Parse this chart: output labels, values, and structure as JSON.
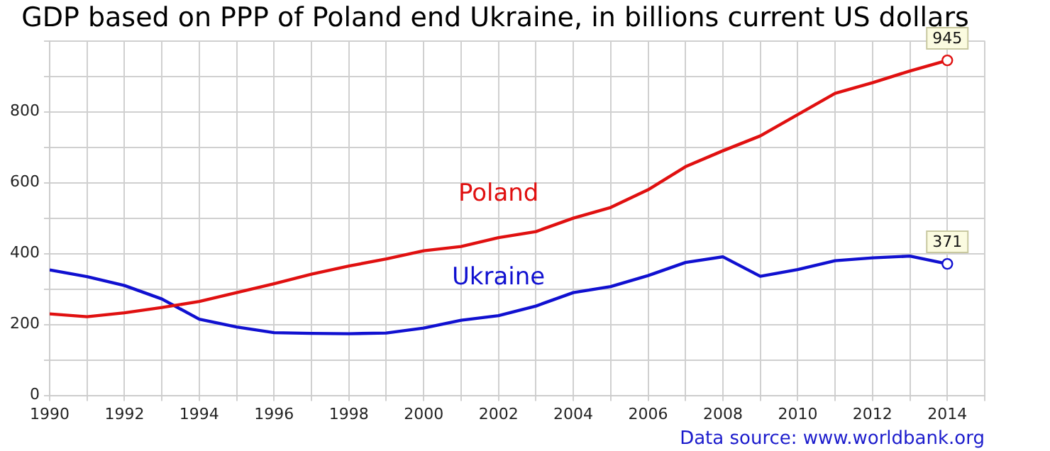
{
  "chart_data": {
    "type": "line",
    "title": "GDP based on PPP of Poland end Ukraine, in billions current US dollars",
    "x": [
      1990,
      1991,
      1992,
      1993,
      1994,
      1995,
      1996,
      1997,
      1998,
      1999,
      2000,
      2001,
      2002,
      2003,
      2004,
      2005,
      2006,
      2007,
      2008,
      2009,
      2010,
      2011,
      2012,
      2013,
      2014
    ],
    "series": [
      {
        "name": "Poland",
        "color": "#e01010",
        "values": [
          230,
          222,
          233,
          248,
          265,
          290,
          315,
          342,
          365,
          385,
          408,
          420,
          445,
          462,
          500,
          530,
          580,
          645,
          690,
          732,
          792,
          852,
          882,
          915,
          945
        ],
        "value_labels": [
          null,
          null,
          null,
          null,
          null,
          null,
          null,
          null,
          null,
          null,
          null,
          null,
          null,
          null,
          null,
          null,
          null,
          null,
          null,
          null,
          null,
          null,
          null,
          null,
          "945"
        ]
      },
      {
        "name": "Ukraine",
        "color": "#1010d0",
        "values": [
          354,
          335,
          310,
          272,
          215,
          193,
          177,
          175,
          174,
          176,
          190,
          212,
          225,
          252,
          290,
          307,
          338,
          375,
          391,
          336,
          355,
          380,
          388,
          393,
          371
        ],
        "value_labels": [
          null,
          null,
          null,
          null,
          null,
          null,
          null,
          null,
          null,
          null,
          null,
          null,
          null,
          null,
          null,
          null,
          null,
          null,
          null,
          null,
          null,
          null,
          null,
          null,
          "371"
        ]
      }
    ],
    "xlim": [
      1990,
      2015
    ],
    "xticks": [
      1990,
      {
        "value": 1991,
        "label": null
      },
      1992,
      {
        "value": 1993,
        "label": null
      },
      1994,
      {
        "value": 1995,
        "label": null
      },
      1996,
      {
        "value": 1997,
        "label": null
      },
      1998,
      {
        "value": 1999,
        "label": null
      },
      2000,
      {
        "value": 2001,
        "label": null
      },
      2002,
      {
        "value": 2003,
        "label": null
      },
      2004,
      {
        "value": 2005,
        "label": null
      },
      2006,
      {
        "value": 2007,
        "label": null
      },
      2008,
      {
        "value": 2009,
        "label": null
      },
      2010,
      {
        "value": 2011,
        "label": null
      },
      2012,
      {
        "value": 2013,
        "label": null
      },
      2014,
      {
        "value": 2015,
        "label": null
      }
    ],
    "ylim": [
      0,
      1000
    ],
    "yticks": [
      0,
      {
        "value": 100,
        "label": null
      },
      200,
      {
        "value": 300,
        "label": null
      },
      400,
      {
        "value": 500,
        "label": null
      },
      600,
      {
        "value": 700,
        "label": null
      },
      800,
      {
        "value": 900,
        "label": null
      },
      {
        "value": 1000,
        "label": null
      }
    ],
    "grid": true,
    "legend": false,
    "annotations": [
      "Data source: www.worldbank.org"
    ]
  }
}
